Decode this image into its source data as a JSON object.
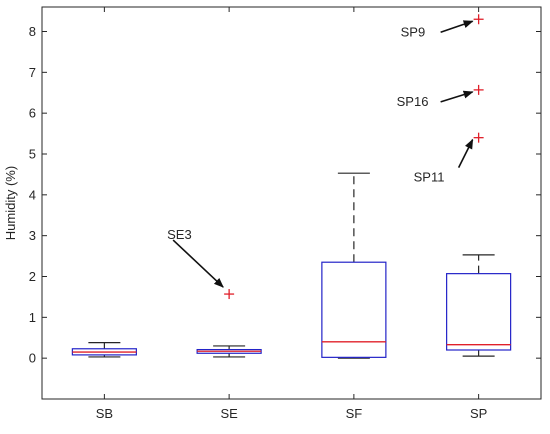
{
  "chart_data": {
    "type": "box",
    "title": "",
    "xlabel": "",
    "ylabel": "Humidity (%)",
    "ylim": [
      -1,
      8.6
    ],
    "yticks": [
      0,
      1,
      2,
      3,
      4,
      5,
      6,
      7,
      8
    ],
    "grid": false,
    "categories": [
      "SB",
      "SE",
      "SF",
      "SP"
    ],
    "colors": {
      "box": "#2323c8",
      "median": "#e0202a",
      "whisker": "#262626",
      "outlier": "#e0202a",
      "axis": "#262626"
    },
    "boxes": [
      {
        "category": "SB",
        "whisker_low": 0.03,
        "q1": 0.08,
        "median": 0.15,
        "q3": 0.23,
        "whisker_high": 0.38,
        "outliers": []
      },
      {
        "category": "SE",
        "whisker_low": 0.03,
        "q1": 0.12,
        "median": 0.17,
        "q3": 0.21,
        "whisker_high": 0.3,
        "outliers": [
          1.57
        ]
      },
      {
        "category": "SF",
        "whisker_low": 0.0,
        "q1": 0.02,
        "median": 0.4,
        "q3": 2.35,
        "whisker_high": 4.53,
        "outliers": []
      },
      {
        "category": "SP",
        "whisker_low": 0.05,
        "q1": 0.2,
        "median": 0.33,
        "q3": 2.07,
        "whisker_high": 2.53,
        "outliers": [
          5.4,
          6.57,
          8.3
        ]
      }
    ],
    "annotations": [
      {
        "text": "SE3",
        "category": "SE",
        "value": 1.57
      },
      {
        "text": "SP9",
        "category": "SP",
        "value": 8.3
      },
      {
        "text": "SP16",
        "category": "SP",
        "value": 6.57
      },
      {
        "text": "SP11",
        "category": "SP",
        "value": 5.4
      }
    ]
  }
}
